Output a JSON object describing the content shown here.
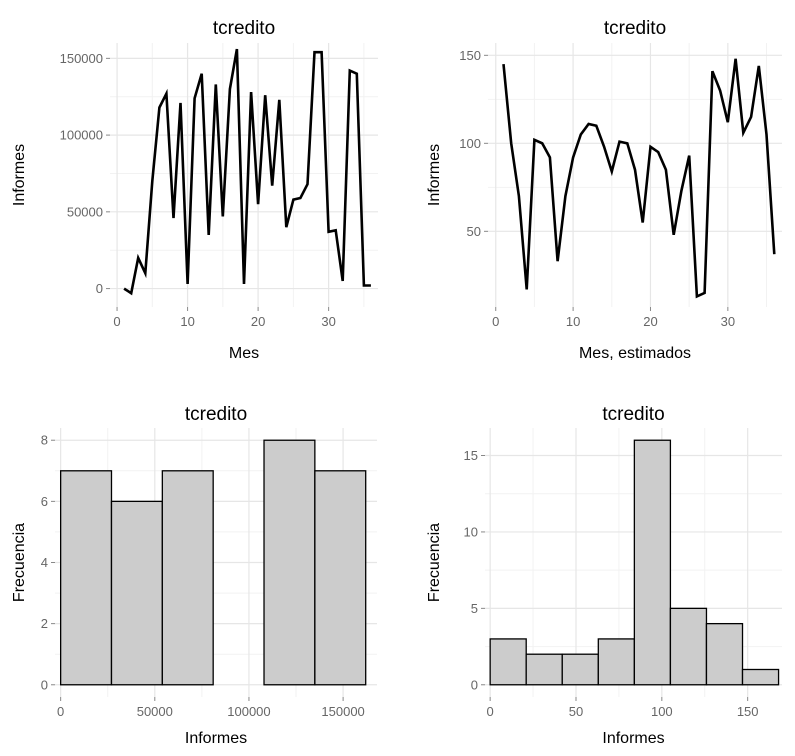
{
  "chart_data": [
    {
      "type": "line",
      "title": "tcredito",
      "xlabel": "Mes",
      "ylabel": "Informes",
      "xlim": [
        -1,
        37
      ],
      "ylim": [
        -12000,
        160000
      ],
      "xticks": [
        0,
        10,
        20,
        30
      ],
      "yticks": [
        0,
        50000,
        100000,
        150000
      ],
      "grid": true,
      "series": [
        {
          "x": [
            1,
            2,
            3,
            4,
            5,
            6,
            7,
            8,
            9,
            10,
            11,
            12,
            13,
            14,
            15,
            16,
            17,
            18,
            19,
            20,
            21,
            22,
            23,
            24,
            25,
            26,
            27,
            28,
            29,
            30,
            31,
            32,
            33,
            34,
            35,
            36
          ],
          "values": [
            0,
            -3000,
            20000,
            10000,
            70000,
            118000,
            127000,
            46000,
            121000,
            3000,
            124000,
            140000,
            35000,
            133000,
            47000,
            130000,
            156000,
            3000,
            128000,
            55000,
            126000,
            67000,
            123000,
            40000,
            58000,
            59000,
            68000,
            154000,
            154000,
            37000,
            38000,
            5000,
            142000,
            140000,
            2000,
            2000
          ]
        }
      ]
    },
    {
      "type": "line",
      "title": "tcredito",
      "xlabel": "Mes, estimados",
      "ylabel": "Informes",
      "xlim": [
        -1,
        37
      ],
      "ylim": [
        7,
        157
      ],
      "xticks": [
        0,
        10,
        20,
        30
      ],
      "yticks": [
        50,
        100,
        150
      ],
      "grid": true,
      "series": [
        {
          "x": [
            1,
            2,
            3,
            4,
            5,
            6,
            7,
            8,
            9,
            10,
            11,
            12,
            13,
            14,
            15,
            16,
            17,
            18,
            19,
            20,
            21,
            22,
            23,
            24,
            25,
            26,
            27,
            28,
            29,
            30,
            31,
            32,
            33,
            34,
            35,
            36
          ],
          "values": [
            145,
            100,
            70,
            17,
            102,
            100,
            92,
            33,
            70,
            92,
            105,
            111,
            110,
            98,
            84,
            101,
            100,
            85,
            55,
            98,
            95,
            85,
            48,
            73,
            93,
            13,
            15,
            141,
            130,
            112,
            148,
            106,
            115,
            144,
            105,
            37
          ]
        }
      ]
    },
    {
      "type": "bar",
      "title": "tcredito",
      "xlabel": "Informes",
      "ylabel": "Frecuencia",
      "xlim": [
        -3000,
        168000
      ],
      "ylim": [
        -0.4,
        8.4
      ],
      "xticks": [
        0,
        50000,
        100000,
        150000
      ],
      "yticks": [
        0,
        2,
        4,
        6,
        8
      ],
      "grid": true,
      "bins": [
        {
          "from": 0,
          "to": 27000,
          "count": 7
        },
        {
          "from": 27000,
          "to": 54000,
          "count": 6
        },
        {
          "from": 54000,
          "to": 81000,
          "count": 7
        },
        {
          "from": 81000,
          "to": 108000,
          "count": 0
        },
        {
          "from": 108000,
          "to": 135000,
          "count": 8
        },
        {
          "from": 135000,
          "to": 162000,
          "count": 7
        }
      ]
    },
    {
      "type": "bar",
      "title": "tcredito",
      "xlabel": "Informes",
      "ylabel": "Frecuencia",
      "xlim": [
        -3,
        170
      ],
      "ylim": [
        -0.8,
        16.8
      ],
      "xticks": [
        0,
        50,
        100,
        150
      ],
      "yticks": [
        0,
        5,
        10,
        15
      ],
      "grid": true,
      "bins": [
        {
          "from": 0,
          "to": 21,
          "count": 3
        },
        {
          "from": 21,
          "to": 42,
          "count": 2
        },
        {
          "from": 42,
          "to": 63,
          "count": 2
        },
        {
          "from": 63,
          "to": 84,
          "count": 3
        },
        {
          "from": 84,
          "to": 105,
          "count": 16
        },
        {
          "from": 105,
          "to": 126,
          "count": 5
        },
        {
          "from": 126,
          "to": 147,
          "count": 4
        },
        {
          "from": 147,
          "to": 168,
          "count": 1
        }
      ]
    }
  ]
}
